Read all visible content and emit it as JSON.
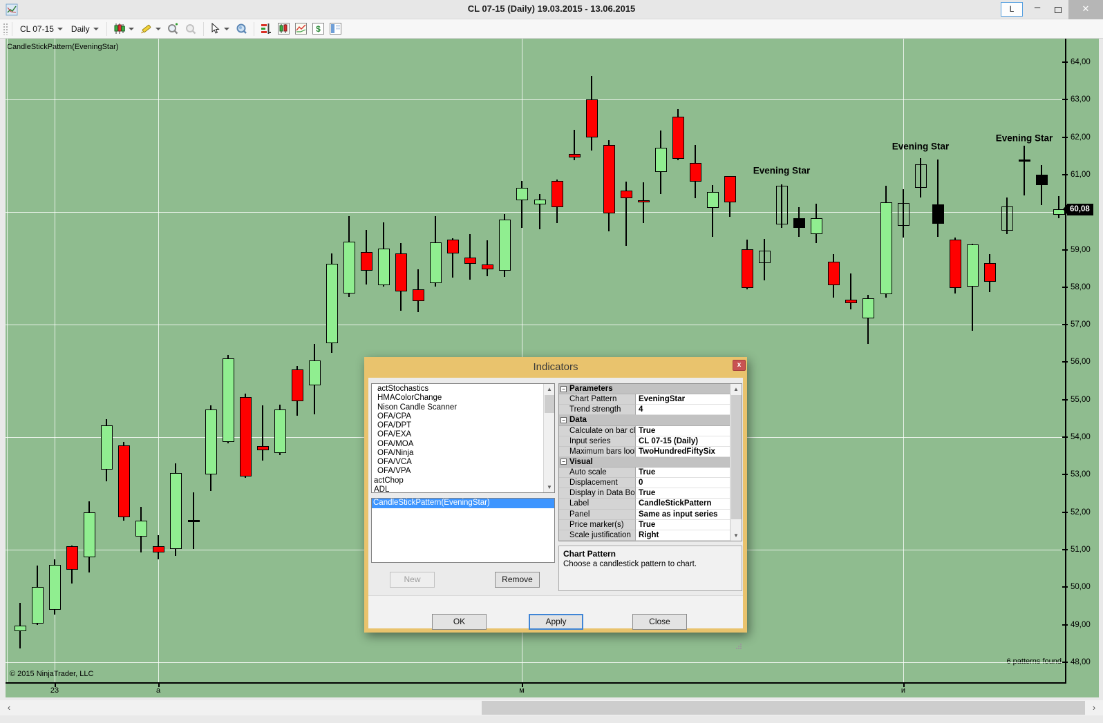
{
  "window": {
    "title": "CL 07-15 (Daily)  19.03.2015 - 13.06.2015",
    "link_button": "L",
    "minimize": "–",
    "close": "✕"
  },
  "toolbar": {
    "instrument": "CL 07-15",
    "interval": "Daily",
    "icons": [
      "chart-style-icon",
      "drawing-tools-icon",
      "zoom-in-icon",
      "zoom-out-icon",
      "cursor-icon",
      "data-box-icon",
      "market-analyzer-icon",
      "chart-window-icon",
      "line-chart-icon",
      "account-dollar-icon",
      "chart-trader-icon"
    ]
  },
  "chart": {
    "indicator_label": "CandleStickPattern(EveningStar)",
    "copyright": "© 2015 NinjaTrader, LLC",
    "patterns_found": "6 patterns found",
    "price_marker": "60,08"
  },
  "chart_data": {
    "type": "candlestick",
    "title": "CL 07-15 (Daily) 19.03.2015 - 13.06.2015",
    "ylim": [
      48,
      64
    ],
    "y_tick_step": 1,
    "y_grid_values": [
      63,
      60,
      57,
      54,
      51,
      48
    ],
    "decimal_separator": ",",
    "last_price": 60.08,
    "grid": true,
    "colors": {
      "background": "#8fbc8f",
      "up": "#90ee90",
      "down": "#ff0000",
      "pattern_down": "#000000",
      "grid": "#ffffff"
    },
    "x_labels": [
      {
        "label": "23",
        "index": 2
      },
      {
        "label": "a",
        "index": 8
      },
      {
        "label": "м",
        "index": 29
      },
      {
        "label": "и",
        "index": 51
      }
    ],
    "annotations": [
      {
        "label": "Evening Star",
        "index": 44,
        "price": 61.11
      },
      {
        "label": "Evening Star",
        "index": 52,
        "price": 61.75
      },
      {
        "label": "Evening Star",
        "index": 58,
        "price": 61.98
      }
    ],
    "candles": [
      [
        "g",
        48.83,
        49.59,
        48.37,
        48.98
      ],
      [
        "g",
        49.02,
        50.57,
        49.0,
        50.01
      ],
      [
        "g",
        49.39,
        50.75,
        49.27,
        50.59
      ],
      [
        "r",
        51.1,
        51.11,
        50.1,
        50.46
      ],
      [
        "g",
        50.8,
        52.29,
        50.39,
        52.0
      ],
      [
        "g",
        53.14,
        54.48,
        52.82,
        54.32
      ],
      [
        "r",
        53.78,
        53.87,
        51.78,
        51.86
      ],
      [
        "g",
        51.35,
        52.15,
        50.93,
        51.78
      ],
      [
        "r",
        51.1,
        51.38,
        50.75,
        50.92
      ],
      [
        "g",
        51.02,
        53.31,
        50.83,
        53.04
      ],
      [
        "d",
        51.8,
        52.52,
        51.02,
        51.78
      ],
      [
        "g",
        53.01,
        54.84,
        52.57,
        54.74
      ],
      [
        "g",
        53.88,
        56.19,
        53.83,
        56.1
      ],
      [
        "r",
        55.07,
        55.17,
        52.92,
        52.96
      ],
      [
        "r",
        53.76,
        54.84,
        53.37,
        53.65
      ],
      [
        "g",
        53.58,
        54.86,
        53.53,
        54.74
      ],
      [
        "r",
        55.81,
        55.9,
        54.58,
        54.95
      ],
      [
        "g",
        55.38,
        56.48,
        54.61,
        56.05
      ],
      [
        "g",
        56.51,
        58.9,
        56.24,
        58.63
      ],
      [
        "g",
        57.83,
        59.9,
        57.74,
        59.21
      ],
      [
        "r",
        58.94,
        59.52,
        58.08,
        58.44
      ],
      [
        "g",
        58.05,
        59.73,
        58.01,
        59.03
      ],
      [
        "r",
        58.9,
        59.18,
        57.37,
        57.89
      ],
      [
        "r",
        57.95,
        58.48,
        57.34,
        57.62
      ],
      [
        "g",
        58.11,
        59.89,
        58.01,
        59.19
      ],
      [
        "r",
        59.27,
        59.3,
        58.26,
        58.9
      ],
      [
        "r",
        58.78,
        59.41,
        58.2,
        58.63
      ],
      [
        "r",
        58.6,
        59.25,
        58.29,
        58.48
      ],
      [
        "g",
        58.44,
        59.95,
        58.27,
        59.81
      ],
      [
        "g",
        60.32,
        60.84,
        59.58,
        60.64
      ],
      [
        "g",
        60.21,
        60.48,
        59.55,
        60.33
      ],
      [
        "r",
        60.84,
        60.87,
        59.71,
        60.14
      ],
      [
        "r",
        61.56,
        62.19,
        61.39,
        61.46
      ],
      [
        "r",
        63.01,
        63.64,
        61.64,
        61.99
      ],
      [
        "r",
        61.8,
        61.92,
        59.49,
        59.96
      ],
      [
        "r",
        60.58,
        60.81,
        59.1,
        60.38
      ],
      [
        "r",
        60.32,
        60.79,
        59.71,
        60.26
      ],
      [
        "g",
        61.07,
        62.17,
        60.48,
        61.71
      ],
      [
        "r",
        62.54,
        62.74,
        61.39,
        61.43
      ],
      [
        "r",
        61.31,
        61.8,
        60.38,
        60.82
      ],
      [
        "g",
        60.11,
        60.72,
        59.35,
        60.54
      ],
      [
        "r",
        60.96,
        60.97,
        59.87,
        60.27
      ],
      [
        "r",
        59.01,
        59.27,
        57.94,
        57.97
      ],
      [
        "h",
        58.64,
        59.29,
        58.18,
        58.98
      ],
      [
        "h",
        59.68,
        60.74,
        59.58,
        60.7
      ],
      [
        "k",
        59.83,
        60.14,
        59.35,
        59.59
      ],
      [
        "g",
        59.41,
        60.23,
        59.18,
        59.83
      ],
      [
        "r",
        58.67,
        58.88,
        57.72,
        58.06
      ],
      [
        "r",
        57.66,
        58.36,
        57.4,
        57.57
      ],
      [
        "g",
        57.17,
        57.8,
        56.49,
        57.71
      ],
      [
        "g",
        57.81,
        60.7,
        57.72,
        60.27
      ],
      [
        "h",
        59.63,
        60.61,
        59.32,
        60.24
      ],
      [
        "h",
        60.64,
        61.44,
        60.4,
        61.27
      ],
      [
        "k",
        60.21,
        61.41,
        59.35,
        59.69
      ],
      [
        "r",
        59.26,
        59.33,
        57.83,
        57.97
      ],
      [
        "g",
        58.02,
        59.15,
        56.83,
        59.13
      ],
      [
        "r",
        58.64,
        58.89,
        57.87,
        58.15
      ],
      [
        "h",
        59.5,
        60.39,
        59.41,
        60.15
      ],
      [
        "d",
        61.4,
        61.77,
        60.45,
        61.39
      ],
      [
        "k",
        60.99,
        61.25,
        60.19,
        60.72
      ],
      [
        "g",
        59.93,
        60.42,
        59.84,
        60.08
      ]
    ]
  },
  "scrollbar": {
    "left_arrow": "‹",
    "right_arrow": "›"
  },
  "dialog": {
    "title": "Indicators",
    "close_label": "x",
    "available_indicators": [
      {
        "label": "actStochastics",
        "indent": true
      },
      {
        "label": "HMAColorChange",
        "indent": true
      },
      {
        "label": "Nison Candle Scanner",
        "indent": true
      },
      {
        "label": "OFA/CPA",
        "indent": true
      },
      {
        "label": "OFA/DPT",
        "indent": true
      },
      {
        "label": "OFA/EXA",
        "indent": true
      },
      {
        "label": "OFA/MOA",
        "indent": true
      },
      {
        "label": "OFA/Ninja",
        "indent": true
      },
      {
        "label": "OFA/VCA",
        "indent": true
      },
      {
        "label": "OFA/VPA",
        "indent": true
      },
      {
        "label": "actChop",
        "indent": false
      },
      {
        "label": "ADL",
        "indent": false
      }
    ],
    "selected_indicators": [
      "CandleStickPattern(EveningStar)"
    ],
    "properties": [
      {
        "t": "cat",
        "name": "Parameters"
      },
      {
        "t": "prop",
        "name": "Chart Pattern",
        "value": "EveningStar"
      },
      {
        "t": "prop",
        "name": "Trend strength",
        "value": "4"
      },
      {
        "t": "cat",
        "name": "Data"
      },
      {
        "t": "prop",
        "name": "Calculate on bar close",
        "value": "True"
      },
      {
        "t": "prop",
        "name": "Input series",
        "value": "CL 07-15 (Daily)"
      },
      {
        "t": "prop",
        "name": "Maximum bars look ba",
        "value": "TwoHundredFiftySix"
      },
      {
        "t": "cat",
        "name": "Visual"
      },
      {
        "t": "prop",
        "name": "Auto scale",
        "value": "True"
      },
      {
        "t": "prop",
        "name": "Displacement",
        "value": "0"
      },
      {
        "t": "prop",
        "name": "Display in Data Box",
        "value": "True"
      },
      {
        "t": "prop",
        "name": "Label",
        "value": "CandleStickPattern"
      },
      {
        "t": "prop",
        "name": "Panel",
        "value": "Same as input series"
      },
      {
        "t": "prop",
        "name": "Price marker(s)",
        "value": "True"
      },
      {
        "t": "prop",
        "name": "Scale justification",
        "value": "Right"
      }
    ],
    "description_title": "Chart Pattern",
    "description_text": "Choose a candlestick pattern to chart.",
    "buttons": {
      "new": "New",
      "remove": "Remove",
      "ok": "OK",
      "apply": "Apply",
      "close": "Close"
    }
  }
}
